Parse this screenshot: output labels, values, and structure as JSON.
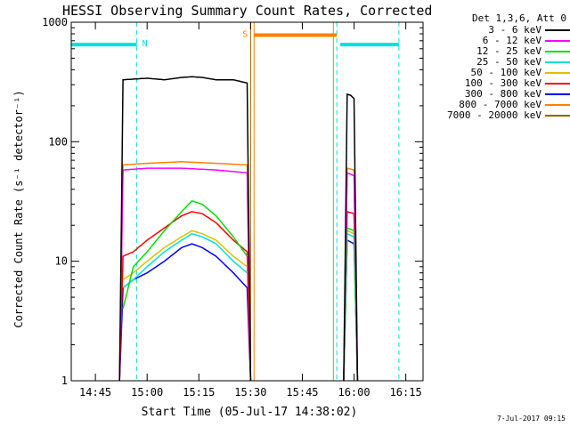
{
  "stamp": "7-Jul-2017 09:15",
  "chart_data": {
    "type": "line",
    "title": "HESSI Observing Summary Count Rates, Corrected",
    "xlabel": "Start Time (05-Jul-17 14:38:02)",
    "ylabel": "Corrected Count Rate (s⁻¹ detector⁻¹)",
    "yscale": "log",
    "ylim": [
      1,
      1000
    ],
    "xlim": [
      "14:38",
      "16:20"
    ],
    "xticks": [
      "14:45",
      "15:00",
      "15:15",
      "15:30",
      "15:45",
      "16:00",
      "16:15"
    ],
    "yticks": [
      "1",
      "10",
      "100",
      "1000"
    ],
    "grid": false,
    "legend": {
      "placement": "outside-right",
      "title": "Det 1,3,6, Att 0",
      "entries": [
        {
          "label": "3 - 6 keV",
          "color": "#000000"
        },
        {
          "label": "6 - 12 keV",
          "color": "#ff00ff"
        },
        {
          "label": "12 - 25 keV",
          "color": "#00e000"
        },
        {
          "label": "25 - 50 keV",
          "color": "#00e0e0"
        },
        {
          "label": "50 - 100 keV",
          "color": "#e0c000"
        },
        {
          "label": "100 - 300 keV",
          "color": "#ff0000"
        },
        {
          "label": "300 - 800 keV",
          "color": "#0000ff"
        },
        {
          "label": "800 - 7000 keV",
          "color": "#ff8000"
        },
        {
          "label": "7000 - 20000 keV",
          "color": "#a06000"
        }
      ]
    },
    "flags": [
      {
        "label": "N",
        "color": "#00e0e0",
        "start": "14:38",
        "end": "14:57",
        "y": 650,
        "kind": "night"
      },
      {
        "label": "S",
        "color": "#ff8000",
        "start": "15:31",
        "end": "15:55",
        "y": 780,
        "kind": "saa"
      },
      {
        "label": "",
        "color": "#00e0e0",
        "start": "15:56",
        "end": "16:13",
        "y": 650,
        "kind": "night"
      }
    ],
    "vlines": [
      {
        "time": "14:57",
        "color": "#00e0e0",
        "style": "dashed"
      },
      {
        "time": "15:55",
        "color": "#00e0e0",
        "style": "dashed"
      },
      {
        "time": "16:13",
        "color": "#00e0e0",
        "style": "dashed"
      },
      {
        "time": "15:30",
        "color": "#a06000",
        "style": "solid"
      },
      {
        "time": "15:31",
        "color": "#ff8000",
        "style": "solid"
      },
      {
        "time": "15:54",
        "color": "#ff8000",
        "style": "solid"
      }
    ],
    "series": [
      {
        "name": "3 - 6 keV",
        "color": "#000000",
        "segments": [
          {
            "x": [
              "14:52",
              "14:53",
              "15:00",
              "15:05",
              "15:10",
              "15:13",
              "15:16",
              "15:20",
              "15:25",
              "15:29",
              "15:30"
            ],
            "y": [
              1,
              330,
              340,
              330,
              345,
              350,
              345,
              330,
              330,
              310,
              1
            ]
          },
          {
            "x": [
              "15:57",
              "15:58",
              "15:59",
              "16:00",
              "16:01"
            ],
            "y": [
              1,
              250,
              245,
              230,
              1
            ]
          }
        ]
      },
      {
        "name": "6 - 12 keV",
        "color": "#ff00ff",
        "segments": [
          {
            "x": [
              "14:52",
              "14:53",
              "15:00",
              "15:10",
              "15:20",
              "15:29",
              "15:30"
            ],
            "y": [
              1,
              58,
              60,
              60,
              58,
              55,
              1
            ]
          },
          {
            "x": [
              "15:57",
              "15:58",
              "16:00",
              "16:01"
            ],
            "y": [
              1,
              55,
              52,
              1
            ]
          }
        ]
      },
      {
        "name": "12 - 25 keV",
        "color": "#00e000",
        "segments": [
          {
            "x": [
              "14:53",
              "14:56",
              "15:00",
              "15:05",
              "15:10",
              "15:13",
              "15:16",
              "15:20",
              "15:25",
              "15:29"
            ],
            "y": [
              4,
              9,
              12,
              18,
              26,
              32,
              30,
              24,
              16,
              11
            ]
          },
          {
            "x": [
              "15:57",
              "15:58",
              "16:00",
              "16:01"
            ],
            "y": [
              1,
              19,
              18,
              1
            ]
          }
        ]
      },
      {
        "name": "25 - 50 keV",
        "color": "#00e0e0",
        "segments": [
          {
            "x": [
              "14:53",
              "14:56",
              "15:00",
              "15:05",
              "15:10",
              "15:13",
              "15:16",
              "15:20",
              "15:25",
              "15:29"
            ],
            "y": [
              6,
              7,
              9,
              12,
              15,
              17,
              16,
              14,
              10,
              8
            ]
          },
          {
            "x": [
              "15:57",
              "15:58",
              "16:00",
              "16:01"
            ],
            "y": [
              1,
              17,
              16,
              1
            ]
          }
        ]
      },
      {
        "name": "50 - 100 keV",
        "color": "#e0c000",
        "segments": [
          {
            "x": [
              "14:53",
              "14:56",
              "15:00",
              "15:05",
              "15:10",
              "15:13",
              "15:16",
              "15:20",
              "15:25",
              "15:29"
            ],
            "y": [
              7,
              8,
              10,
              13,
              16,
              18,
              17,
              15,
              11,
              9
            ]
          },
          {
            "x": [
              "15:57",
              "15:58",
              "16:00",
              "16:01"
            ],
            "y": [
              1,
              18,
              17,
              1
            ]
          }
        ]
      },
      {
        "name": "100 - 300 keV",
        "color": "#ff0000",
        "segments": [
          {
            "x": [
              "14:52",
              "14:53",
              "14:56",
              "15:00",
              "15:05",
              "15:10",
              "15:13",
              "15:16",
              "15:20",
              "15:25",
              "15:29",
              "15:30"
            ],
            "y": [
              1,
              11,
              12,
              15,
              19,
              24,
              26,
              25,
              21,
              15,
              12,
              1
            ]
          },
          {
            "x": [
              "15:57",
              "15:58",
              "16:00",
              "16:01"
            ],
            "y": [
              1,
              26,
              25,
              1
            ]
          }
        ]
      },
      {
        "name": "300 - 800 keV",
        "color": "#0000ff",
        "segments": [
          {
            "x": [
              "14:52",
              "14:53",
              "14:56",
              "15:00",
              "15:05",
              "15:10",
              "15:13",
              "15:16",
              "15:20",
              "15:25",
              "15:29",
              "15:30"
            ],
            "y": [
              1,
              6,
              7,
              8,
              10,
              13,
              14,
              13,
              11,
              8,
              6,
              1
            ]
          },
          {
            "x": [
              "15:57",
              "15:58",
              "16:00",
              "16:01"
            ],
            "y": [
              1,
              15,
              14,
              1
            ]
          }
        ]
      },
      {
        "name": "800 - 7000 keV",
        "color": "#ff8000",
        "segments": [
          {
            "x": [
              "14:52",
              "14:53",
              "15:00",
              "15:10",
              "15:20",
              "15:29",
              "15:30"
            ],
            "y": [
              1,
              64,
              66,
              68,
              66,
              64,
              1
            ]
          },
          {
            "x": [
              "15:57",
              "15:58",
              "16:00",
              "16:01"
            ],
            "y": [
              1,
              60,
              58,
              1
            ]
          }
        ]
      },
      {
        "name": "7000 - 20000 keV",
        "color": "#a06000",
        "segments": []
      }
    ]
  }
}
